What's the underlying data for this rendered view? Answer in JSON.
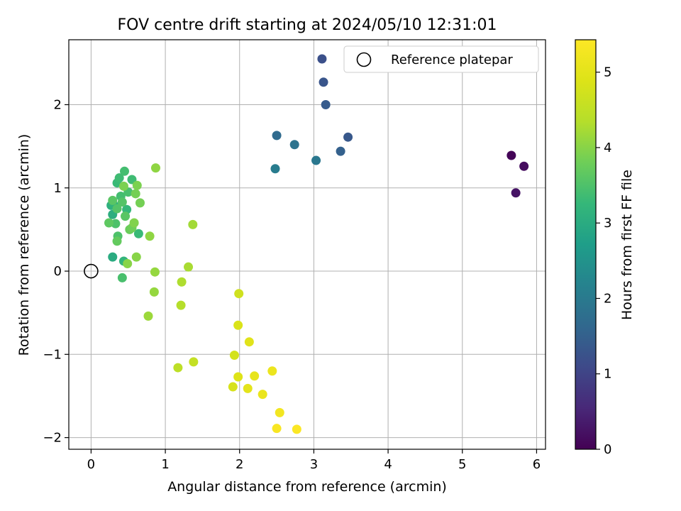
{
  "chart_data": {
    "type": "scatter",
    "title": "FOV centre drift starting at 2024/05/10 12:31:01",
    "xlabel": "Angular distance from reference (arcmin)",
    "ylabel": "Rotation from reference (arcmin)",
    "xlim": [
      -0.3,
      6.12
    ],
    "ylim": [
      -2.14,
      2.78
    ],
    "xticks": [
      0,
      1,
      2,
      3,
      4,
      5,
      6
    ],
    "xtick_labels": [
      "0",
      "1",
      "2",
      "3",
      "4",
      "5",
      "6"
    ],
    "yticks": [
      -2,
      -1,
      0,
      1,
      2
    ],
    "ytick_labels": [
      "−2",
      "−1",
      "0",
      "1",
      "2"
    ],
    "grid": true,
    "legend": {
      "position": "top-right",
      "entries": [
        "Reference platepar"
      ]
    },
    "reference_point": {
      "x": 0,
      "y": 0,
      "label": "Reference platepar"
    },
    "colorbar": {
      "label": "Hours from first FF file",
      "colormap": "viridis",
      "range": [
        0,
        5.43
      ],
      "ticks": [
        0,
        1,
        2,
        3,
        4,
        5
      ],
      "tick_labels": [
        "0",
        "1",
        "2",
        "3",
        "4",
        "5"
      ]
    },
    "points": [
      {
        "x": 5.66,
        "y": 1.39,
        "c": 0.05
      },
      {
        "x": 5.83,
        "y": 1.26,
        "c": 0.15
      },
      {
        "x": 5.72,
        "y": 0.94,
        "c": 0.25
      },
      {
        "x": 3.11,
        "y": 2.55,
        "c": 1.2
      },
      {
        "x": 3.13,
        "y": 2.27,
        "c": 1.3
      },
      {
        "x": 3.16,
        "y": 2.0,
        "c": 1.4
      },
      {
        "x": 3.46,
        "y": 1.61,
        "c": 1.35
      },
      {
        "x": 3.36,
        "y": 1.44,
        "c": 1.5
      },
      {
        "x": 2.5,
        "y": 1.63,
        "c": 1.7
      },
      {
        "x": 2.74,
        "y": 1.52,
        "c": 1.85
      },
      {
        "x": 3.03,
        "y": 1.33,
        "c": 1.95
      },
      {
        "x": 2.48,
        "y": 1.23,
        "c": 2.05
      },
      {
        "x": 0.29,
        "y": 0.17,
        "c": 3.0
      },
      {
        "x": 0.29,
        "y": 0.68,
        "c": 3.05
      },
      {
        "x": 0.27,
        "y": 0.79,
        "c": 3.1
      },
      {
        "x": 0.31,
        "y": 0.79,
        "c": 3.15
      },
      {
        "x": 0.44,
        "y": 0.12,
        "c": 3.2
      },
      {
        "x": 0.48,
        "y": 0.74,
        "c": 3.25
      },
      {
        "x": 0.64,
        "y": 0.45,
        "c": 3.3
      },
      {
        "x": 0.35,
        "y": 1.06,
        "c": 3.3
      },
      {
        "x": 0.38,
        "y": 1.12,
        "c": 3.35
      },
      {
        "x": 0.45,
        "y": 1.2,
        "c": 3.4
      },
      {
        "x": 0.55,
        "y": 1.1,
        "c": 3.35
      },
      {
        "x": 0.4,
        "y": 0.9,
        "c": 3.4
      },
      {
        "x": 0.5,
        "y": 0.95,
        "c": 3.45
      },
      {
        "x": 0.42,
        "y": -0.08,
        "c": 3.45
      },
      {
        "x": 0.36,
        "y": 0.42,
        "c": 3.5
      },
      {
        "x": 0.33,
        "y": 0.57,
        "c": 3.5
      },
      {
        "x": 0.42,
        "y": 0.83,
        "c": 3.55
      },
      {
        "x": 0.35,
        "y": 0.75,
        "c": 3.55
      },
      {
        "x": 0.46,
        "y": 0.66,
        "c": 3.6
      },
      {
        "x": 0.29,
        "y": 0.85,
        "c": 3.6
      },
      {
        "x": 0.24,
        "y": 0.58,
        "c": 3.65
      },
      {
        "x": 0.35,
        "y": 0.36,
        "c": 3.7
      },
      {
        "x": 0.52,
        "y": 0.5,
        "c": 3.75
      },
      {
        "x": 0.55,
        "y": 0.52,
        "c": 3.8
      },
      {
        "x": 0.6,
        "y": 0.93,
        "c": 3.85
      },
      {
        "x": 0.66,
        "y": 0.82,
        "c": 3.85
      },
      {
        "x": 0.62,
        "y": 1.03,
        "c": 3.9
      },
      {
        "x": 0.44,
        "y": 1.02,
        "c": 3.9
      },
      {
        "x": 0.58,
        "y": 0.58,
        "c": 3.95
      },
      {
        "x": 0.49,
        "y": 0.09,
        "c": 4.0
      },
      {
        "x": 0.61,
        "y": 0.17,
        "c": 4.0
      },
      {
        "x": 0.79,
        "y": 0.42,
        "c": 4.05
      },
      {
        "x": 0.87,
        "y": 1.24,
        "c": 4.05
      },
      {
        "x": 0.86,
        "y": -0.01,
        "c": 4.1
      },
      {
        "x": 0.85,
        "y": -0.25,
        "c": 4.1
      },
      {
        "x": 0.77,
        "y": -0.54,
        "c": 4.15
      },
      {
        "x": 1.37,
        "y": 0.56,
        "c": 4.2
      },
      {
        "x": 1.31,
        "y": 0.05,
        "c": 4.25
      },
      {
        "x": 1.22,
        "y": -0.13,
        "c": 4.3
      },
      {
        "x": 1.21,
        "y": -0.41,
        "c": 4.35
      },
      {
        "x": 1.17,
        "y": -1.16,
        "c": 4.45
      },
      {
        "x": 1.38,
        "y": -1.09,
        "c": 4.55
      },
      {
        "x": 1.99,
        "y": -0.27,
        "c": 4.7
      },
      {
        "x": 1.93,
        "y": -1.01,
        "c": 4.75
      },
      {
        "x": 1.91,
        "y": -1.39,
        "c": 4.8
      },
      {
        "x": 1.98,
        "y": -0.65,
        "c": 4.85
      },
      {
        "x": 1.98,
        "y": -1.27,
        "c": 4.9
      },
      {
        "x": 2.13,
        "y": -0.85,
        "c": 4.95
      },
      {
        "x": 2.11,
        "y": -1.41,
        "c": 5.0
      },
      {
        "x": 2.2,
        "y": -1.26,
        "c": 5.05
      },
      {
        "x": 2.31,
        "y": -1.48,
        "c": 5.1
      },
      {
        "x": 2.44,
        "y": -1.2,
        "c": 5.15
      },
      {
        "x": 2.54,
        "y": -1.7,
        "c": 5.25
      },
      {
        "x": 2.5,
        "y": -1.89,
        "c": 5.35
      },
      {
        "x": 2.77,
        "y": -1.9,
        "c": 5.4
      }
    ]
  }
}
